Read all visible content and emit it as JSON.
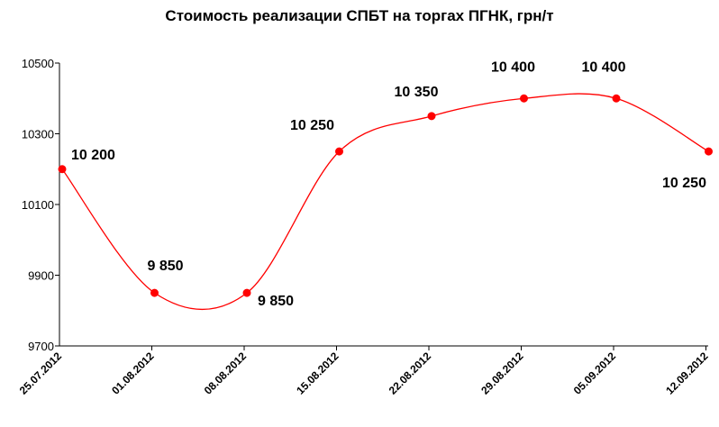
{
  "chart_data": {
    "type": "line",
    "title": "Стоимость реализации СПБТ на торгах ПГНК, грн/т",
    "xlabel": "",
    "ylabel": "",
    "categories": [
      "25.07.2012",
      "01.08.2012",
      "08.08.2012",
      "15.08.2012",
      "22.08.2012",
      "29.08.2012",
      "05.09.2012",
      "12.09.2012"
    ],
    "series": [
      {
        "values": [
          10200,
          9850,
          9850,
          10250,
          10350,
          10400,
          10400,
          10250
        ],
        "data_labels": [
          "10 200",
          "9 850",
          "9 850",
          "10 250",
          "10 350",
          "10 400",
          "10 400",
          "10 250"
        ]
      }
    ],
    "y_ticks": [
      "9700",
      "9900",
      "10100",
      "10300",
      "10500"
    ],
    "ylim": [
      9700,
      10500
    ],
    "grid": false,
    "legend": "none",
    "smooth": true,
    "colors": {
      "series": "#ff0000",
      "axis": "#000000"
    }
  }
}
